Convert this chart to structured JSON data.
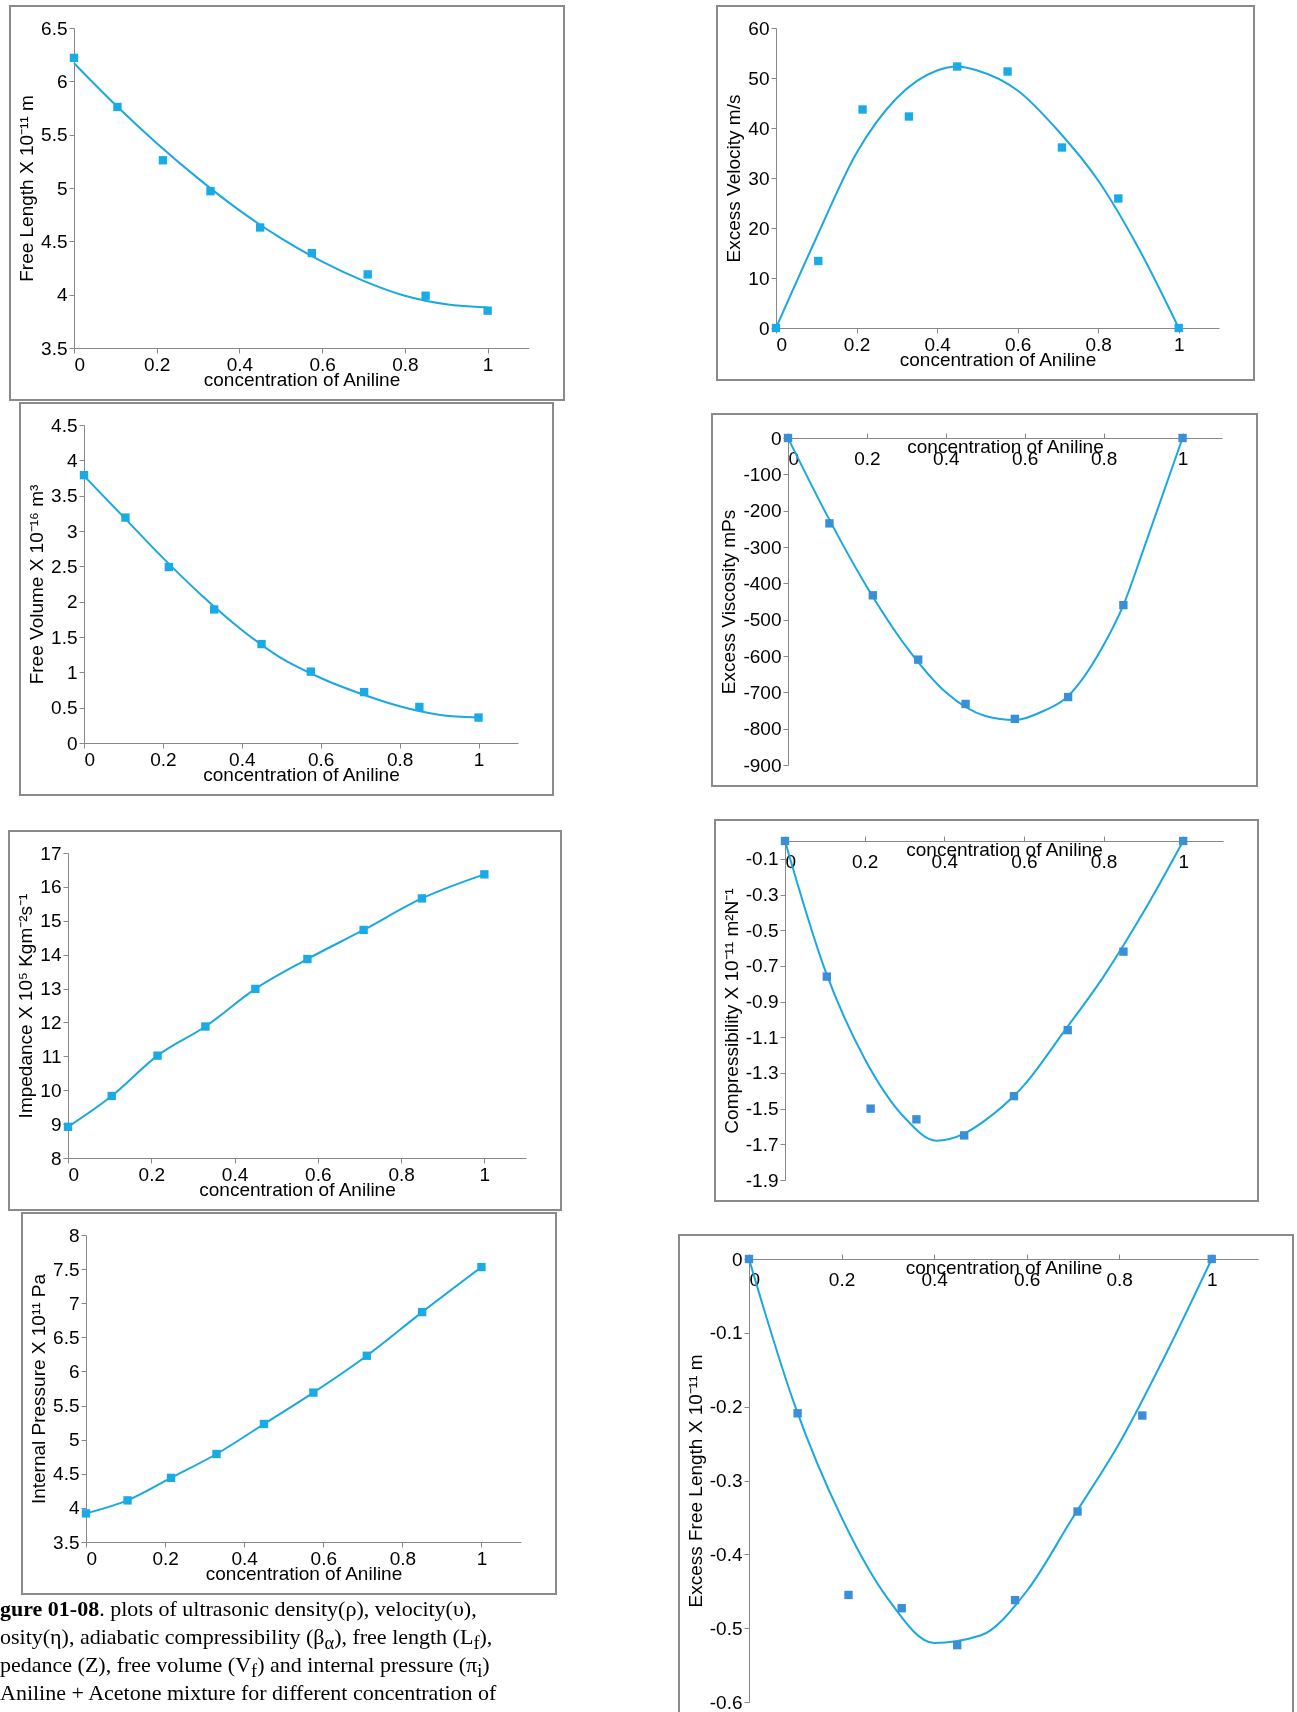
{
  "chart_data": [
    {
      "type": "scatter",
      "ylabel": "Free Length  X 10⁻¹¹ m",
      "xlabel": "concentration of Aniline",
      "xlim": [
        0,
        1.1
      ],
      "xticks": [
        0,
        0.2,
        0.4,
        0.6,
        0.8,
        1
      ],
      "ylim": [
        3.5,
        6.5
      ],
      "yticks": [
        3.5,
        4,
        4.5,
        5,
        5.5,
        6,
        6.5
      ],
      "grid": false,
      "x": [
        0,
        0.105,
        0.215,
        0.33,
        0.45,
        0.575,
        0.71,
        0.85,
        1
      ],
      "series": [
        {
          "marker": "square",
          "color": "#1aabe6",
          "values": [
            6.22,
            5.76,
            5.26,
            4.97,
            4.63,
            4.39,
            4.19,
            3.99,
            3.85
          ]
        },
        {
          "type": "line",
          "marker": "none",
          "color": "#1aa8e0",
          "x": [
            0,
            0.1,
            0.2,
            0.3,
            0.4,
            0.5,
            0.6,
            0.7,
            0.8,
            0.9,
            1
          ],
          "values": [
            6.17,
            5.78,
            5.42,
            5.09,
            4.79,
            4.53,
            4.31,
            4.13,
            3.99,
            3.91,
            3.88
          ]
        }
      ]
    },
    {
      "type": "scatter",
      "ylabel": "Excess Velocity  m/s",
      "xlabel": "concentration of Aniline",
      "xlim": [
        0,
        1.1
      ],
      "xticks": [
        0,
        0.2,
        0.4,
        0.6,
        0.8,
        1
      ],
      "ylim": [
        0,
        60
      ],
      "yticks": [
        0,
        10,
        20,
        30,
        40,
        50,
        60
      ],
      "grid": false,
      "x": [
        0,
        0.105,
        0.215,
        0.33,
        0.45,
        0.575,
        0.71,
        0.85,
        1
      ],
      "series": [
        {
          "marker": "square",
          "color": "#1aabe6",
          "values": [
            0,
            13.4,
            43.7,
            42.3,
            52.3,
            51.3,
            36.1,
            25.9,
            0
          ]
        },
        {
          "type": "line",
          "marker": "none",
          "color": "#1aa8e0",
          "x": [
            0,
            0.1,
            0.2,
            0.3,
            0.4,
            0.45,
            0.5,
            0.6,
            0.7,
            0.8,
            0.9,
            1
          ],
          "values": [
            0,
            18,
            35,
            46,
            51.5,
            52.3,
            51.5,
            47.5,
            39.5,
            29.5,
            16,
            0
          ]
        }
      ]
    },
    {
      "type": "scatter",
      "ylabel": "Free Volume X 10⁻¹⁶ m³",
      "xlabel": "concentration of Aniline",
      "xlim": [
        0,
        1.1
      ],
      "xticks": [
        0,
        0.2,
        0.4,
        0.6,
        0.8,
        1
      ],
      "ylim": [
        0,
        4.5
      ],
      "yticks": [
        0,
        0.5,
        1,
        1.5,
        2,
        2.5,
        3,
        3.5,
        4,
        4.5
      ],
      "grid": false,
      "x": [
        0,
        0.105,
        0.215,
        0.33,
        0.45,
        0.575,
        0.71,
        0.85,
        1
      ],
      "series": [
        {
          "marker": "square",
          "color": "#1aabe6",
          "values": [
            3.79,
            3.19,
            2.49,
            1.89,
            1.4,
            1.01,
            0.72,
            0.51,
            0.36
          ]
        },
        {
          "type": "line",
          "marker": "none",
          "color": "#1aa8e0",
          "x": [
            0,
            0.1,
            0.2,
            0.3,
            0.4,
            0.5,
            0.6,
            0.7,
            0.8,
            0.9,
            1
          ],
          "values": [
            3.78,
            3.2,
            2.62,
            2.08,
            1.6,
            1.2,
            0.92,
            0.7,
            0.52,
            0.4,
            0.36
          ]
        }
      ]
    },
    {
      "type": "scatter",
      "ylabel": "Excess  Viscosity mPs",
      "xlabel": "concentration of Aniline",
      "xlim": [
        0,
        1.1
      ],
      "xticks": [
        0,
        0.2,
        0.4,
        0.6,
        0.8,
        1
      ],
      "ylim": [
        -900,
        0
      ],
      "yticks": [
        -900,
        -800,
        -700,
        -600,
        -500,
        -400,
        -300,
        -200,
        -100,
        0
      ],
      "grid": false,
      "x": [
        0,
        0.105,
        0.215,
        0.33,
        0.45,
        0.575,
        0.71,
        0.85,
        1
      ],
      "series": [
        {
          "marker": "square",
          "color": "#3a8fd6",
          "values": [
            0,
            -235,
            -433,
            -610,
            -732,
            -773,
            -713,
            -460,
            0
          ]
        },
        {
          "type": "line",
          "marker": "none",
          "color": "#1aa8e0",
          "x": [
            0,
            0.1,
            0.2,
            0.3,
            0.4,
            0.5,
            0.575,
            0.65,
            0.7,
            0.8,
            0.85,
            0.9,
            1
          ],
          "values": [
            0,
            -215,
            -410,
            -575,
            -700,
            -765,
            -776,
            -750,
            -720,
            -570,
            -460,
            -310,
            0
          ]
        }
      ]
    },
    {
      "type": "scatter",
      "ylabel": "Impedance  X 10⁵ Kgm⁻²s⁻¹",
      "xlabel": "concentration of Aniline",
      "xlim": [
        0,
        1.1
      ],
      "xticks": [
        0,
        0.2,
        0.4,
        0.6,
        0.8,
        1
      ],
      "ylim": [
        8,
        17
      ],
      "yticks": [
        8,
        9,
        10,
        11,
        12,
        13,
        14,
        15,
        16,
        17
      ],
      "grid": false,
      "x": [
        0,
        0.105,
        0.215,
        0.33,
        0.45,
        0.575,
        0.71,
        0.85,
        1
      ],
      "series": [
        {
          "marker": "square",
          "color": "#1aabe6",
          "values": [
            8.92,
            9.83,
            11.02,
            11.88,
            12.99,
            13.87,
            14.73,
            15.66,
            16.37
          ]
        },
        {
          "type": "line",
          "marker": "none",
          "color": "#1aa8e0",
          "x": [
            0,
            0.105,
            0.215,
            0.33,
            0.45,
            0.575,
            0.71,
            0.85,
            1
          ],
          "values": [
            8.92,
            9.83,
            11.02,
            11.88,
            12.99,
            13.87,
            14.73,
            15.66,
            16.37
          ]
        }
      ]
    },
    {
      "type": "scatter",
      "ylabel": "Compressibility  X 10⁻¹¹ m²N⁻¹",
      "xlabel": "concentration of Aniline",
      "xlim": [
        0,
        1.1
      ],
      "xticks": [
        0,
        0.2,
        0.4,
        0.6,
        0.8,
        1
      ],
      "ylim": [
        -1.9,
        0
      ],
      "yticks": [
        -1.9,
        -1.7,
        -1.5,
        -1.3,
        -1.1,
        -0.9,
        -0.7,
        -0.5,
        -0.3,
        -0.1
      ],
      "grid": false,
      "x": [
        0,
        0.105,
        0.215,
        0.33,
        0.45,
        0.575,
        0.71,
        0.85,
        1
      ],
      "series": [
        {
          "marker": "square",
          "color": "#3a8fd6",
          "values": [
            0,
            -0.76,
            -1.5,
            -1.56,
            -1.65,
            -1.43,
            -1.06,
            -0.62,
            0
          ]
        },
        {
          "type": "line",
          "marker": "none",
          "color": "#1aa8e0",
          "x": [
            0,
            0.1,
            0.2,
            0.3,
            0.38,
            0.45,
            0.5,
            0.6,
            0.7,
            0.8,
            0.9,
            1
          ],
          "values": [
            0,
            -0.72,
            -1.22,
            -1.55,
            -1.68,
            -1.64,
            -1.57,
            -1.37,
            -1.07,
            -0.76,
            -0.4,
            0
          ]
        }
      ]
    },
    {
      "type": "scatter",
      "ylabel": "Internal Pressure X 10¹¹ Pa",
      "xlabel": "concentration of Aniline",
      "xlim": [
        0,
        1.1
      ],
      "xticks": [
        0,
        0.2,
        0.4,
        0.6,
        0.8,
        1
      ],
      "ylim": [
        3.5,
        8
      ],
      "yticks": [
        3.5,
        4,
        4.5,
        5,
        5.5,
        6,
        6.5,
        7,
        7.5,
        8
      ],
      "grid": false,
      "x": [
        0,
        0.105,
        0.215,
        0.33,
        0.45,
        0.575,
        0.71,
        0.85,
        1
      ],
      "annotations": [
        "gure 01-08. plots of ultrasonic  density(ρ), velocity(υ),",
        "osity(η), adiabatic compressibility (β$_{α}$), free length (L$_{f}$),",
        "pedance (Z),  free volume (V$_{f}$) and internal pressure (π$_{i}$)",
        "Aniline + Acetone mixture for different concentration of"
      ],
      "series": [
        {
          "marker": "square",
          "color": "#1aabe6",
          "values": [
            3.92,
            4.11,
            4.44,
            4.79,
            5.23,
            5.69,
            6.23,
            6.87,
            7.53
          ]
        },
        {
          "type": "line",
          "marker": "none",
          "color": "#1aa8e0",
          "x": [
            0,
            0.105,
            0.215,
            0.33,
            0.45,
            0.575,
            0.71,
            0.85,
            1
          ],
          "values": [
            3.92,
            4.11,
            4.44,
            4.79,
            5.23,
            5.69,
            6.23,
            6.87,
            7.53
          ]
        }
      ]
    },
    {
      "type": "scatter",
      "ylabel": "Excess   Free Length  X 10⁻¹¹ m",
      "xlabel": "concentration of Aniline",
      "xlim": [
        0,
        1.1
      ],
      "xticks": [
        0,
        0.2,
        0.4,
        0.6,
        0.8,
        1
      ],
      "ylim": [
        -0.6,
        0
      ],
      "yticks": [
        -0.6,
        -0.5,
        -0.4,
        -0.3,
        -0.2,
        -0.1,
        0
      ],
      "grid": false,
      "x": [
        0,
        0.105,
        0.215,
        0.33,
        0.45,
        0.575,
        0.71,
        0.85,
        1
      ],
      "series": [
        {
          "marker": "square",
          "color": "#3a8fd6",
          "values": [
            0,
            -0.209,
            -0.455,
            -0.473,
            -0.523,
            -0.462,
            -0.342,
            -0.212,
            0
          ]
        },
        {
          "type": "line",
          "marker": "none",
          "color": "#1aa8e0",
          "x": [
            0,
            0.1,
            0.2,
            0.3,
            0.4,
            0.5,
            0.6,
            0.7,
            0.8,
            0.9,
            1
          ],
          "values": [
            0,
            -0.2,
            -0.35,
            -0.46,
            -0.52,
            -0.51,
            -0.45,
            -0.35,
            -0.25,
            -0.13,
            0
          ]
        }
      ]
    }
  ]
}
